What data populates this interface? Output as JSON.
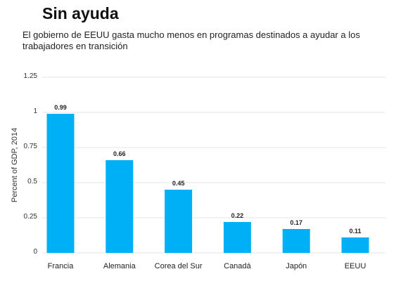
{
  "chart_data": {
    "type": "bar",
    "title": "Sin ayuda",
    "subtitle": "El gobierno de EEUU gasta mucho menos en programas destinados a ayudar a los trabajadores en transición",
    "ylabel": "Percent of GDP, 2014",
    "xlabel": "",
    "categories": [
      "Francia",
      "Alemania",
      "Corea del Sur",
      "Canadá",
      "Japón",
      "EEUU"
    ],
    "values": [
      0.99,
      0.66,
      0.45,
      0.22,
      0.17,
      0.11
    ],
    "value_labels": [
      "0.99",
      "0.66",
      "0.45",
      "0.22",
      "0.17",
      "0.11"
    ],
    "ylim": [
      0,
      1.25
    ],
    "yticks": [
      0,
      0.25,
      0.5,
      0.75,
      1,
      1.25
    ],
    "ytick_labels": [
      "0",
      "0.25",
      "0.5",
      "0.75",
      "1",
      "1.25"
    ],
    "grid": true,
    "legend": "none",
    "bar_color": "#00b0f6",
    "grid_color": "#e6e6e6"
  }
}
